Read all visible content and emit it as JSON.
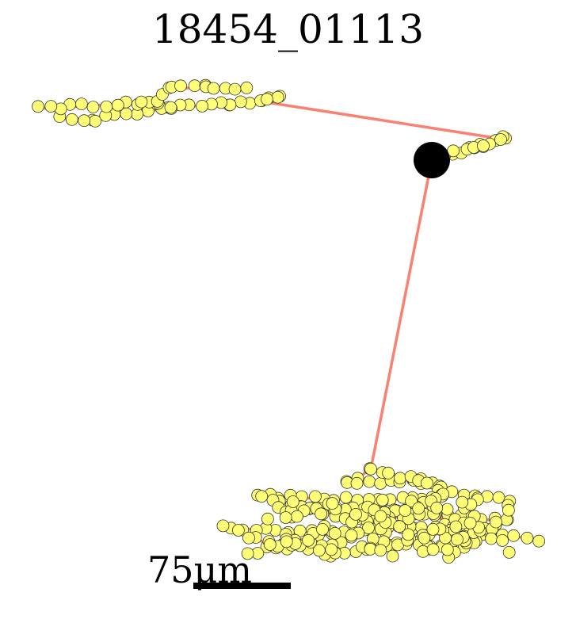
{
  "title": "18454_01113",
  "scale_label": "75μm",
  "colors": {
    "background": "#ffffff",
    "edge": "#fa8072",
    "node_fill": "#ffff77",
    "node_stroke": "#333333",
    "soma": "#000000"
  }
}
